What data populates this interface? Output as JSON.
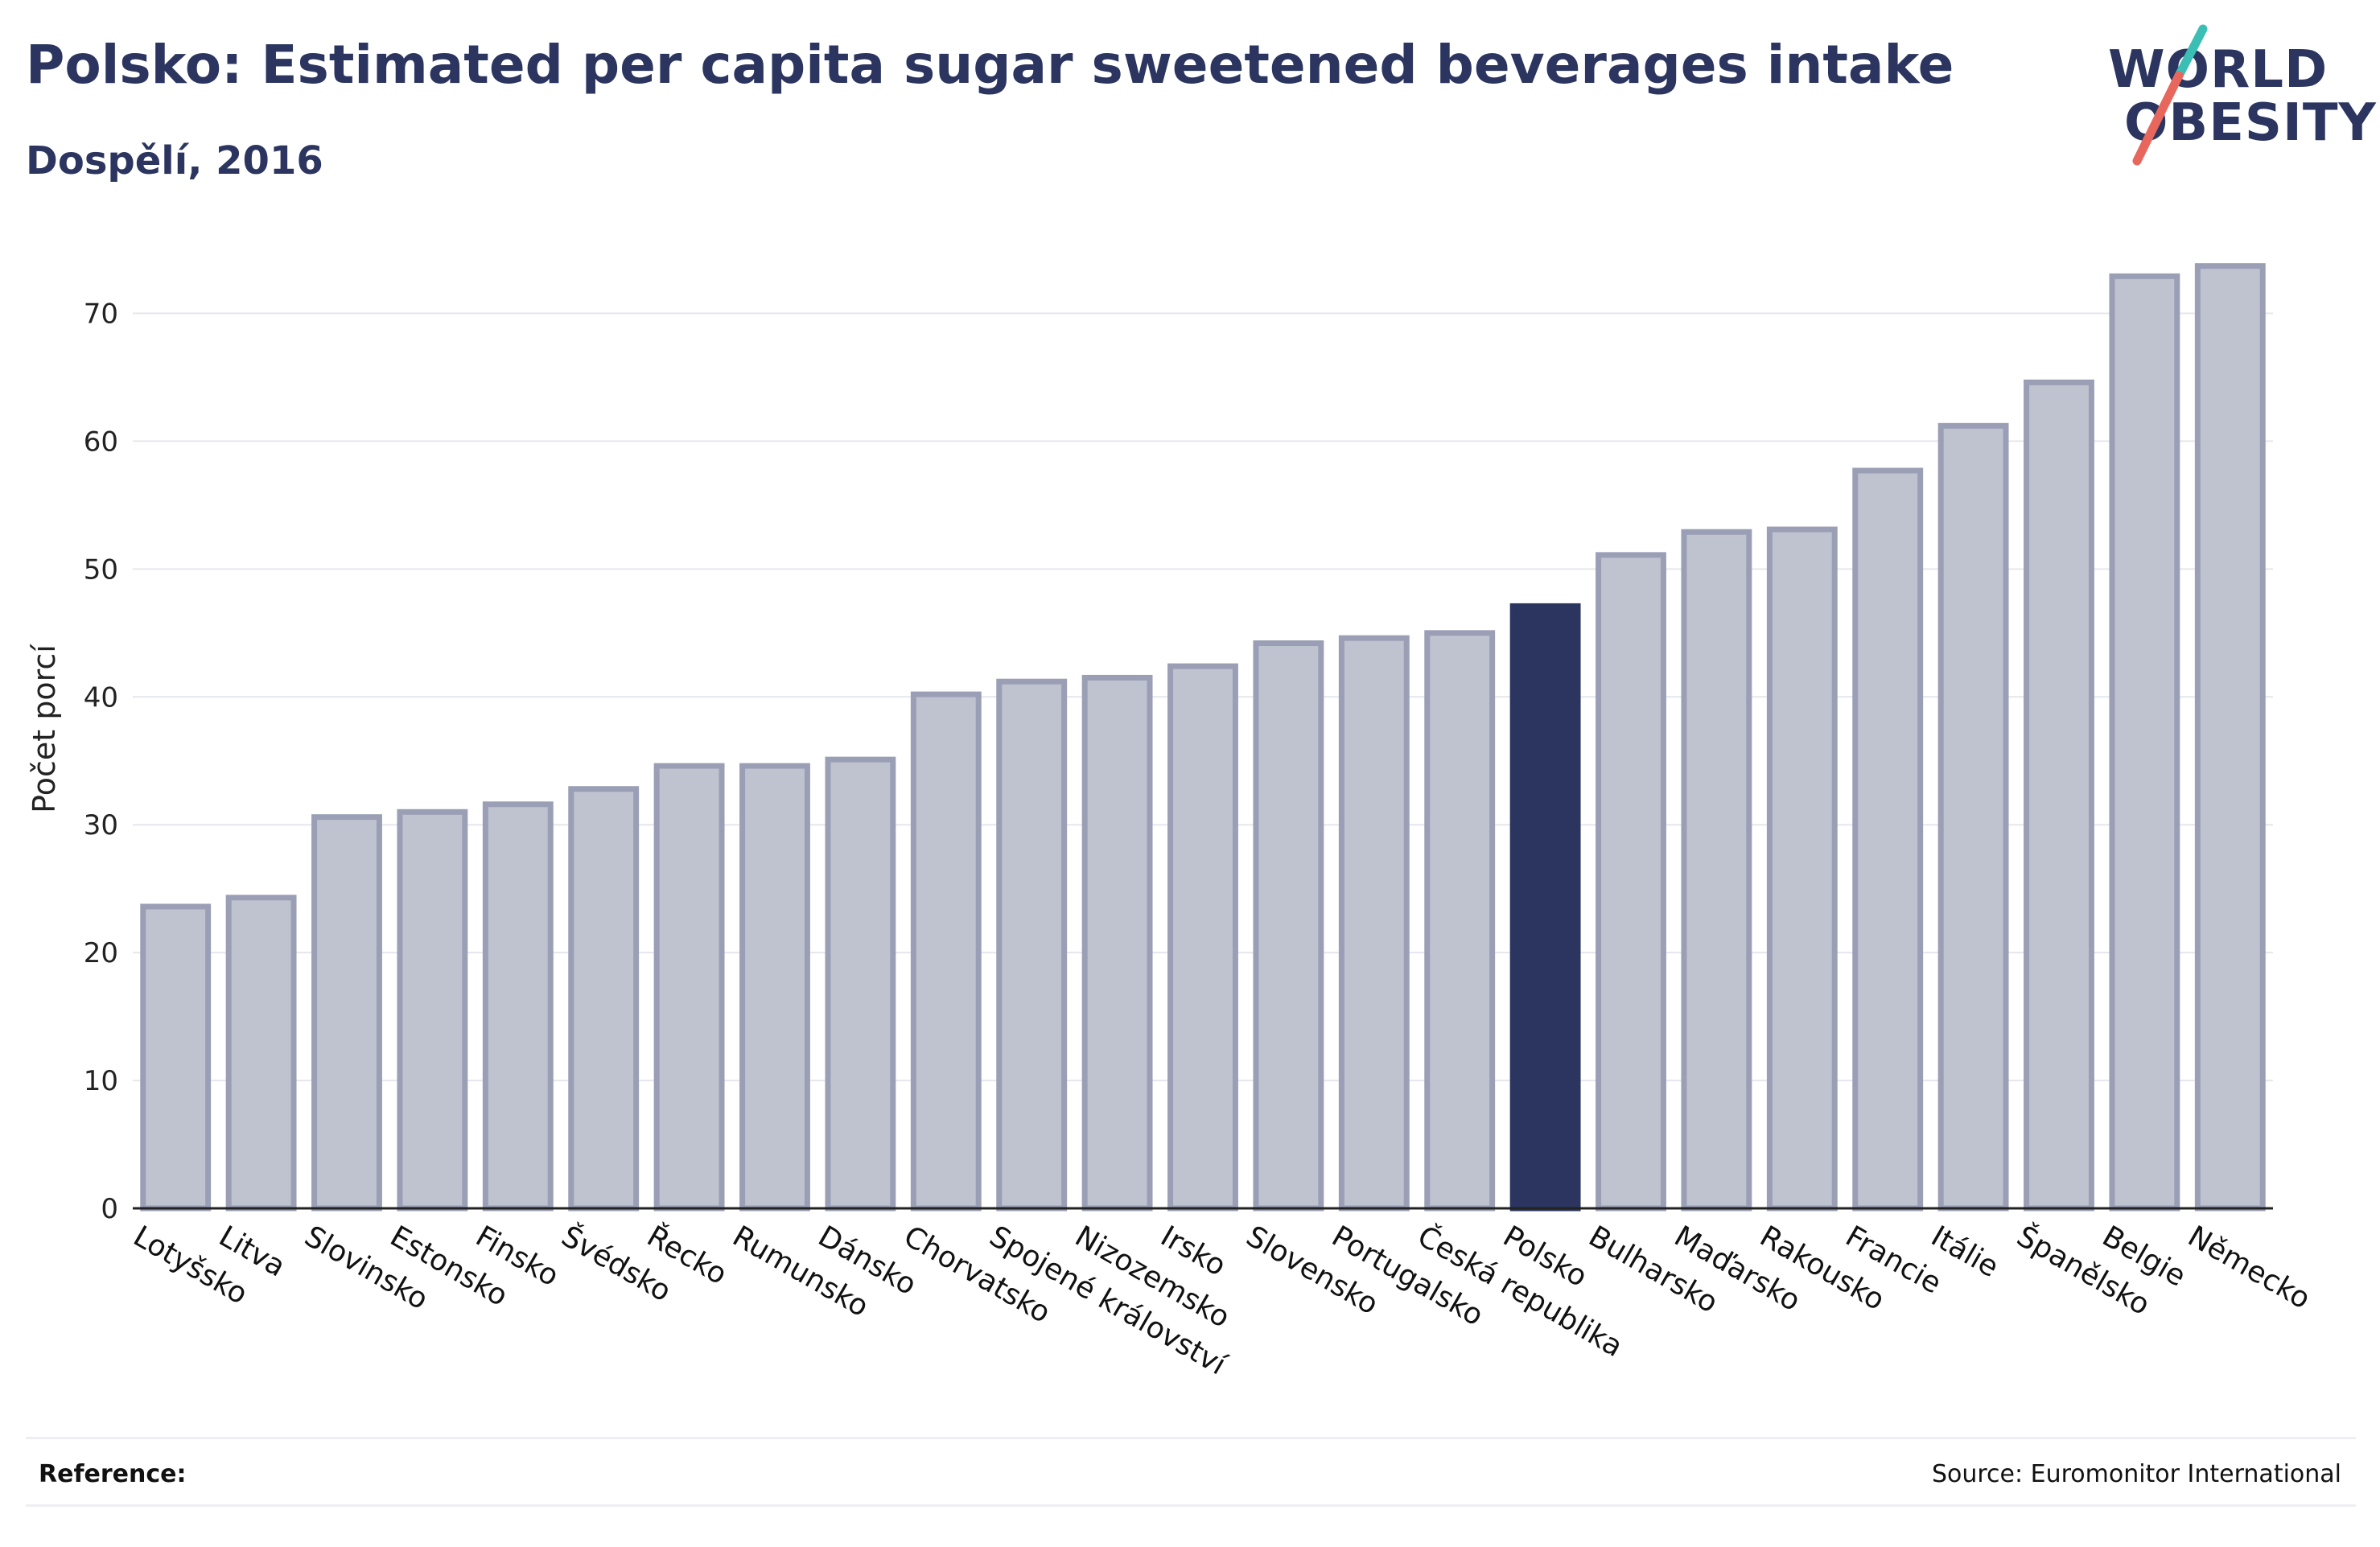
{
  "header": {
    "title": "Polsko: Estimated per capita sugar sweetened beverages intake",
    "subtitle": "Dospělí, 2016"
  },
  "logo": {
    "line1": "WORLD",
    "line2": "OBESITY"
  },
  "footer": {
    "reference_label": "Reference:",
    "source": "Source: Euromonitor International"
  },
  "colors": {
    "bar": "#bfc2cf",
    "bar_stroke": "#9a9fb6",
    "highlight": "#2b355f",
    "grid": "#e6e7ee",
    "text": "#2b355f",
    "logo_teal": "#3bbfb5",
    "logo_red": "#e8675d"
  },
  "chart_data": {
    "type": "bar",
    "title": "Polsko: Estimated per capita sugar sweetened beverages intake",
    "subtitle": "Dospělí, 2016",
    "ylabel": "Počet porcí",
    "xlabel": "",
    "ylim": [
      0,
      75
    ],
    "yticks": [
      0,
      10,
      20,
      30,
      40,
      50,
      60,
      70
    ],
    "grid": true,
    "highlight": "Polsko",
    "categories": [
      "Lotyšsko",
      "Litva",
      "Slovinsko",
      "Estonsko",
      "Finsko",
      "Švédsko",
      "Řecko",
      "Rumunsko",
      "Dánsko",
      "Chorvatsko",
      "Spojené království",
      "Nizozemsko",
      "Irsko",
      "Slovensko",
      "Portugalsko",
      "Česká republika",
      "Polsko",
      "Bulharsko",
      "Maďarsko",
      "Rakousko",
      "Francie",
      "Itálie",
      "Španělsko",
      "Belgie",
      "Německo"
    ],
    "values": [
      23.6,
      24.3,
      30.6,
      31.0,
      31.6,
      32.8,
      34.6,
      34.6,
      35.1,
      40.2,
      41.2,
      41.5,
      42.4,
      44.2,
      44.6,
      45.0,
      47.1,
      51.1,
      52.9,
      53.1,
      57.7,
      61.2,
      64.6,
      72.9,
      73.7
    ]
  }
}
